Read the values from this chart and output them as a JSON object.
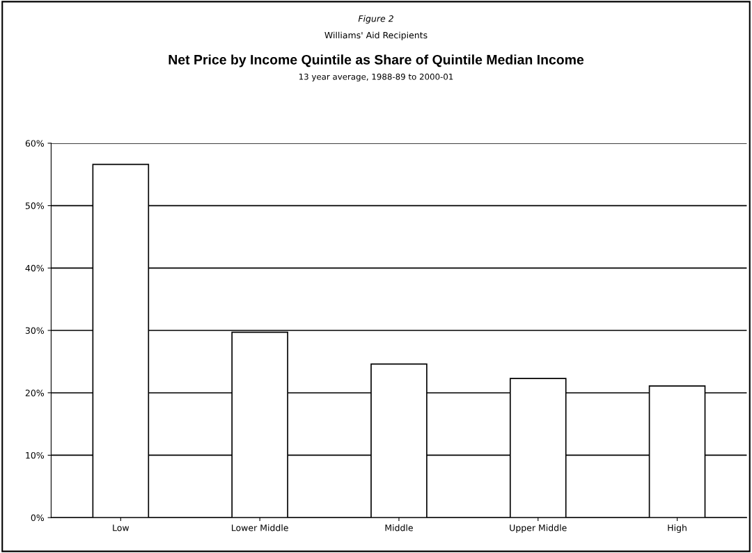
{
  "chart_data": {
    "type": "bar",
    "title": "Net Price by Income Quintile as Share of Quintile Median Income",
    "subtitle": "13 year average, 1988-89 to 2000-01",
    "annotations": [
      "Figure 2",
      "Williams' Aid Recipients"
    ],
    "categories": [
      "Low",
      "Lower Middle",
      "Middle",
      "Upper Middle",
      "High"
    ],
    "values": [
      56.6,
      29.7,
      24.6,
      22.3,
      21.1
    ],
    "color": "#ffffff",
    "ylim": [
      0,
      60
    ],
    "yticks": [
      {
        "value": 0,
        "label": "0%"
      },
      {
        "value": 10,
        "label": "10%"
      },
      {
        "value": 20,
        "label": "20%"
      },
      {
        "value": 30,
        "label": "30%"
      },
      {
        "value": 40,
        "label": "40%"
      },
      {
        "value": 50,
        "label": "50%"
      },
      {
        "value": 60,
        "label": "60%"
      }
    ],
    "grid": "y",
    "legend": false
  }
}
